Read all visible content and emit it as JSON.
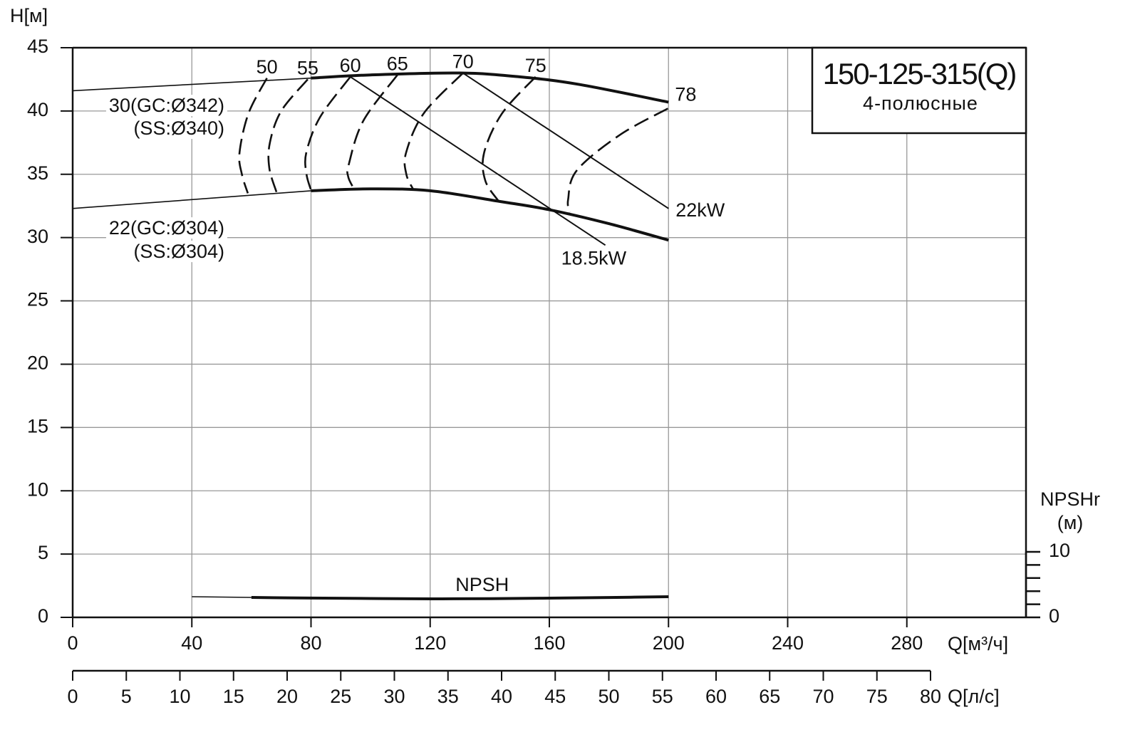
{
  "chart_data": {
    "type": "line",
    "title": "150-125-315(Q)",
    "subtitle": "4-полюсные",
    "ylabel": "H[м]",
    "xlabel": "Q[м³/ч]",
    "x2label": "Q[л/с]",
    "y2label": [
      "NPSHr",
      "(м)"
    ],
    "xlim": [
      0,
      320
    ],
    "xticks": [
      0,
      40,
      80,
      120,
      160,
      200,
      240,
      280
    ],
    "xgrid": [
      0,
      40,
      80,
      120,
      160,
      200,
      240,
      280,
      320
    ],
    "ylim": [
      0,
      45
    ],
    "yticks": [
      0,
      5,
      10,
      15,
      20,
      25,
      30,
      35,
      40,
      45
    ],
    "x2lim": [
      0,
      80
    ],
    "x2ticks": [
      0,
      5,
      10,
      15,
      20,
      25,
      30,
      35,
      40,
      45,
      50,
      55,
      60,
      65,
      70,
      75,
      80
    ],
    "y2lim": [
      0,
      10
    ],
    "y2ticks": [
      0,
      10
    ],
    "y2minorticks": [
      2,
      4,
      6,
      8
    ],
    "grid": true,
    "head_curves": [
      {
        "labels": [
          "30(GC:Ø342)",
          "(SS:Ø340)"
        ],
        "color": "#111111",
        "segments": [
          {
            "weight": "thin",
            "x": [
              0,
              80
            ],
            "values": [
              41.6,
              42.6
            ]
          },
          {
            "weight": "thick",
            "x": [
              80,
              100,
              130,
              150,
              170,
              200
            ],
            "values": [
              42.6,
              42.85,
              43.0,
              42.7,
              42.1,
              40.7
            ]
          }
        ]
      },
      {
        "labels": [
          "22(GC:Ø304)",
          "(SS:Ø304)"
        ],
        "color": "#111111",
        "segments": [
          {
            "weight": "thin",
            "x": [
              0,
              80
            ],
            "values": [
              32.3,
              33.7
            ]
          },
          {
            "weight": "thick",
            "x": [
              80,
              100,
              120,
              143.5,
              160,
              180,
              200
            ],
            "values": [
              33.7,
              33.85,
              33.7,
              32.85,
              32.2,
              31.1,
              29.8
            ]
          }
        ]
      }
    ],
    "efficiency_curves": [
      {
        "name": "50",
        "x": [
          65.2,
          59.0,
          56.0,
          56.8,
          58.8
        ],
        "values": [
          42.6,
          39.8,
          36.7,
          35.0,
          33.5
        ]
      },
      {
        "name": "55",
        "x": [
          78.9,
          70.0,
          66.2,
          66.0,
          68.4
        ],
        "values": [
          42.5,
          40.0,
          37.5,
          35.5,
          33.6
        ]
      },
      {
        "name": "60",
        "x": [
          93.2,
          83.0,
          78.4,
          78.5,
          80.0
        ],
        "values": [
          42.7,
          39.5,
          36.7,
          35.0,
          33.75
        ]
      },
      {
        "name": "65",
        "x": [
          109.0,
          97.5,
          92.7,
          92.5,
          94.4
        ],
        "values": [
          42.85,
          39.2,
          35.8,
          34.8,
          33.85
        ]
      },
      {
        "name": "70",
        "x": [
          131.0,
          117.8,
          111.9,
          112.0,
          114.2
        ],
        "values": [
          43.0,
          39.8,
          36.7,
          35.0,
          33.85
        ]
      },
      {
        "name": "75",
        "x": [
          155.4,
          144.1,
          138.1,
          138.5,
          142.9
        ],
        "values": [
          42.7,
          39.8,
          36.7,
          34.5,
          32.9
        ]
      },
      {
        "name": "78",
        "x": [
          199.8,
          183.6,
          169.2,
          166.3,
          166.8
        ],
        "values": [
          40.2,
          38.1,
          35.3,
          33.0,
          32.0
        ]
      }
    ],
    "power_lines": [
      {
        "name": "22kW",
        "x": [
          131.0,
          200
        ],
        "values": [
          43.0,
          32.3
        ]
      },
      {
        "name": "18.5kW",
        "x": [
          93.2,
          178.8
        ],
        "values": [
          42.7,
          29.4
        ]
      }
    ],
    "npsh_curve": {
      "name": "NPSH",
      "axis": "y2",
      "segments": [
        {
          "weight": "thin",
          "x": [
            40,
            60
          ],
          "values": [
            3.15,
            3.04
          ]
        },
        {
          "weight": "thick",
          "x": [
            60,
            80,
            100,
            120,
            140,
            160,
            180,
            200
          ],
          "values": [
            3.04,
            2.95,
            2.88,
            2.83,
            2.85,
            2.93,
            3.03,
            3.15
          ]
        }
      ]
    }
  }
}
